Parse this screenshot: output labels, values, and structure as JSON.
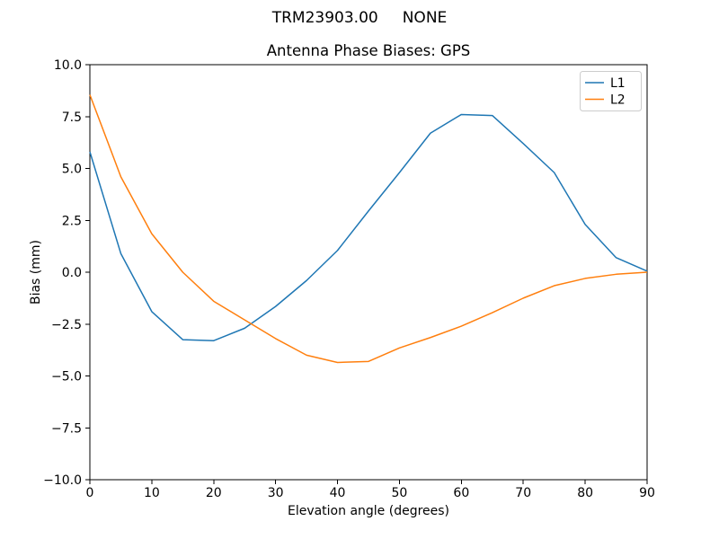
{
  "figure": {
    "suptitle": "TRM23903.00     NONE"
  },
  "colors": {
    "background": "#ffffff",
    "axis": "#000000",
    "text": "#000000",
    "legend_border": "#cccccc",
    "l1": "#1f77b4",
    "l2": "#ff7f0e"
  },
  "chart_data": {
    "type": "line",
    "title": "Antenna Phase Biases: GPS",
    "xlabel": "Elevation angle (degrees)",
    "ylabel": "Bias (mm)",
    "xlim": [
      0,
      90
    ],
    "ylim": [
      -10,
      10
    ],
    "grid": false,
    "legend": {
      "position": "upper right",
      "entries": [
        "L1",
        "L2"
      ]
    },
    "xticks": {
      "values": [
        0,
        10,
        20,
        30,
        40,
        50,
        60,
        70,
        80,
        90
      ],
      "labels": [
        "0",
        "10",
        "20",
        "30",
        "40",
        "50",
        "60",
        "70",
        "80",
        "90"
      ]
    },
    "yticks": {
      "values": [
        -10,
        -7.5,
        -5,
        -2.5,
        0,
        2.5,
        5,
        7.5,
        10
      ],
      "labels": [
        "−10.0",
        "−7.5",
        "−5.0",
        "−2.5",
        "0.0",
        "2.5",
        "5.0",
        "7.5",
        "10.0"
      ]
    },
    "x": [
      0,
      5,
      10,
      15,
      20,
      25,
      30,
      35,
      40,
      45,
      50,
      55,
      60,
      65,
      70,
      75,
      80,
      85,
      90
    ],
    "series": [
      {
        "name": "L1",
        "color": "#1f77b4",
        "values": [
          5.8,
          0.9,
          -1.9,
          -3.25,
          -3.3,
          -2.7,
          -1.65,
          -0.4,
          1.05,
          2.95,
          4.8,
          6.7,
          7.6,
          7.55,
          6.2,
          4.8,
          2.3,
          0.7,
          0.05
        ]
      },
      {
        "name": "L2",
        "color": "#ff7f0e",
        "values": [
          8.55,
          4.6,
          1.85,
          0.0,
          -1.4,
          -2.3,
          -3.2,
          -4.0,
          -4.35,
          -4.3,
          -3.65,
          -3.15,
          -2.6,
          -1.95,
          -1.25,
          -0.65,
          -0.3,
          -0.1,
          0.0
        ]
      }
    ]
  }
}
